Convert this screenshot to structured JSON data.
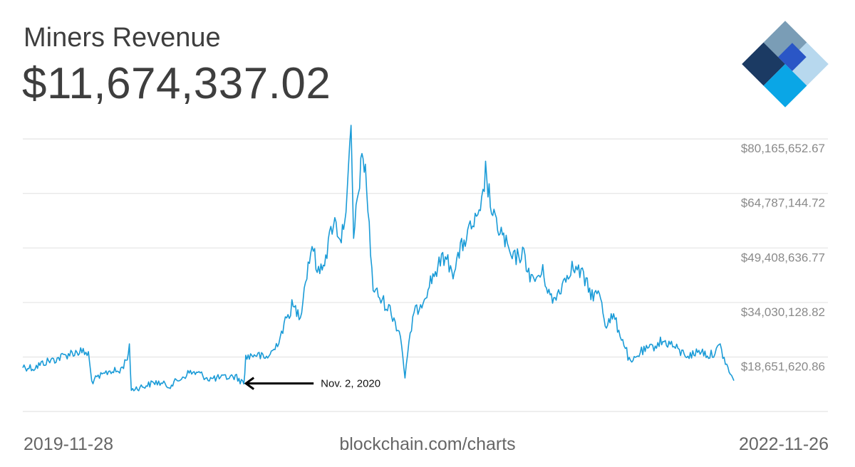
{
  "header": {
    "title": "Miners Revenue",
    "value": "$11,674,337.02"
  },
  "footer": {
    "start_date": "2019-11-28",
    "source": "blockchain.com/charts",
    "end_date": "2022-11-26"
  },
  "colors": {
    "line": "#1a9bd7",
    "grid": "#e4e4e4",
    "logo": [
      "#7a9db6",
      "#1b3a63",
      "#2a56c6",
      "#0aa6e6",
      "#b7d8ee"
    ]
  },
  "icons": {
    "logo": "blockchain-logo-icon"
  },
  "chart_data": {
    "type": "line",
    "title": "Miners Revenue",
    "x_start": "2019-11-28",
    "x_end": "2022-11-26",
    "ylim": [
      3300000,
      84000000
    ],
    "y_ticks": [
      18651620.86,
      34030128.82,
      49408636.77,
      64787144.72,
      80165652.67
    ],
    "y_tick_labels": [
      "$18,651,620.86",
      "$34,030,128.82",
      "$49,408,636.77",
      "$64,787,144.72",
      "$80,165,652.67"
    ],
    "y_axis_side": "right",
    "grid": true,
    "annotation": {
      "text": "Nov. 2, 2020",
      "date": "2020-11-02",
      "value": 11200000
    },
    "series": [
      {
        "points": [
          [
            "2019-11-28",
            16000000
          ],
          [
            "2019-12-15",
            15600000
          ],
          [
            "2020-01-01",
            17200000
          ],
          [
            "2020-01-20",
            18200000
          ],
          [
            "2020-02-10",
            19800000
          ],
          [
            "2020-02-25",
            20200000
          ],
          [
            "2020-03-08",
            19500000
          ],
          [
            "2020-03-13",
            11800000
          ],
          [
            "2020-03-25",
            13000000
          ],
          [
            "2020-04-10",
            14800000
          ],
          [
            "2020-04-25",
            14500000
          ],
          [
            "2020-05-05",
            17800000
          ],
          [
            "2020-05-10",
            21000000
          ],
          [
            "2020-05-13",
            9500000
          ],
          [
            "2020-06-01",
            10400000
          ],
          [
            "2020-06-20",
            11600000
          ],
          [
            "2020-07-10",
            10500000
          ],
          [
            "2020-07-25",
            12200000
          ],
          [
            "2020-08-10",
            14300000
          ],
          [
            "2020-08-25",
            14000000
          ],
          [
            "2020-09-10",
            12500000
          ],
          [
            "2020-10-01",
            12800000
          ],
          [
            "2020-10-20",
            13200000
          ],
          [
            "2020-11-02",
            11200000
          ],
          [
            "2020-11-05",
            18500000
          ],
          [
            "2020-11-20",
            19500000
          ],
          [
            "2020-12-05",
            18200000
          ],
          [
            "2020-12-20",
            21000000
          ],
          [
            "2021-01-03",
            27500000
          ],
          [
            "2021-01-15",
            33000000
          ],
          [
            "2021-01-28",
            30500000
          ],
          [
            "2021-02-05",
            40500000
          ],
          [
            "2021-02-15",
            50500000
          ],
          [
            "2021-02-25",
            42000000
          ],
          [
            "2021-03-10",
            48500000
          ],
          [
            "2021-03-20",
            57500000
          ],
          [
            "2021-04-01",
            52000000
          ],
          [
            "2021-04-10",
            63500000
          ],
          [
            "2021-04-16",
            82000000
          ],
          [
            "2021-04-20",
            52000000
          ],
          [
            "2021-05-01",
            72500000
          ],
          [
            "2021-05-08",
            73000000
          ],
          [
            "2021-05-12",
            60000000
          ],
          [
            "2021-05-20",
            38000000
          ],
          [
            "2021-06-01",
            35000000
          ],
          [
            "2021-06-15",
            32000000
          ],
          [
            "2021-07-01",
            25000000
          ],
          [
            "2021-07-08",
            13200000
          ],
          [
            "2021-07-20",
            30000000
          ],
          [
            "2021-08-05",
            35000000
          ],
          [
            "2021-08-20",
            41500000
          ],
          [
            "2021-09-06",
            47000000
          ],
          [
            "2021-09-20",
            43000000
          ],
          [
            "2021-10-05",
            50500000
          ],
          [
            "2021-10-20",
            56000000
          ],
          [
            "2021-11-01",
            58000000
          ],
          [
            "2021-11-09",
            71000000
          ],
          [
            "2021-11-20",
            58000000
          ],
          [
            "2021-12-05",
            53000000
          ],
          [
            "2021-12-20",
            46000000
          ],
          [
            "2022-01-05",
            48000000
          ],
          [
            "2022-01-20",
            40000000
          ],
          [
            "2022-02-05",
            42500000
          ],
          [
            "2022-02-20",
            34000000
          ],
          [
            "2022-03-05",
            38500000
          ],
          [
            "2022-03-20",
            44000000
          ],
          [
            "2022-04-05",
            42500000
          ],
          [
            "2022-04-20",
            36500000
          ],
          [
            "2022-05-05",
            36000000
          ],
          [
            "2022-05-12",
            28000000
          ],
          [
            "2022-05-25",
            30000000
          ],
          [
            "2022-06-10",
            22500000
          ],
          [
            "2022-06-20",
            16500000
          ],
          [
            "2022-07-05",
            20000000
          ],
          [
            "2022-07-20",
            21000000
          ],
          [
            "2022-08-05",
            23000000
          ],
          [
            "2022-08-20",
            22500000
          ],
          [
            "2022-09-05",
            20000000
          ],
          [
            "2022-09-20",
            19000000
          ],
          [
            "2022-10-05",
            20500000
          ],
          [
            "2022-10-20",
            19000000
          ],
          [
            "2022-11-05",
            21500000
          ],
          [
            "2022-11-15",
            16000000
          ],
          [
            "2022-11-26",
            12000000
          ]
        ]
      }
    ]
  }
}
